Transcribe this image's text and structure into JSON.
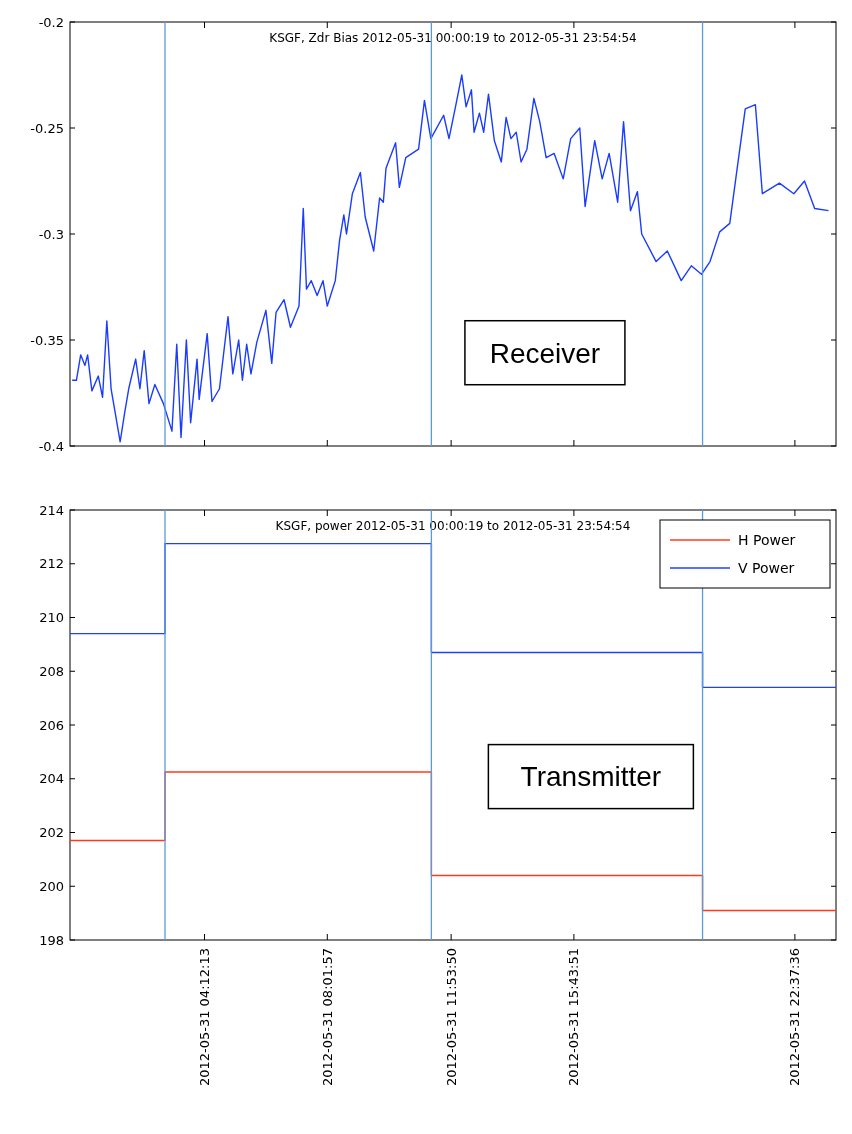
{
  "chart_data": [
    {
      "type": "line",
      "title": "KSGF, Zdr Bias 2012-05-31 00:00:19 to 2012-05-31 23:54:54",
      "x": [
        "2012-05-31T00:04",
        "2012-05-31T00:12",
        "2012-05-31T00:20",
        "2012-05-31T00:28",
        "2012-05-31T00:33",
        "2012-05-31T00:41",
        "2012-05-31T00:53",
        "2012-05-31T01:01",
        "2012-05-31T01:09",
        "2012-05-31T01:17",
        "2012-05-31T01:34",
        "2012-05-31T01:42",
        "2012-05-31T01:50",
        "2012-05-31T02:03",
        "2012-05-31T02:11",
        "2012-05-31T02:19",
        "2012-05-31T02:28",
        "2012-05-31T02:39",
        "2012-05-31T02:55",
        "2012-05-31T03:11",
        "2012-05-31T03:20",
        "2012-05-31T03:28",
        "2012-05-31T03:38",
        "2012-05-31T03:46",
        "2012-05-31T03:58",
        "2012-05-31T04:02",
        "2012-05-31T04:17",
        "2012-05-31T04:26",
        "2012-05-31T04:40",
        "2012-05-31T04:56",
        "2012-05-31T05:05",
        "2012-05-31T05:16",
        "2012-05-31T05:23",
        "2012-05-31T05:31",
        "2012-05-31T05:39",
        "2012-05-31T05:50",
        "2012-05-31T06:07",
        "2012-05-31T06:18",
        "2012-05-31T06:26",
        "2012-05-31T06:41",
        "2012-05-31T06:53",
        "2012-05-31T07:09",
        "2012-05-31T07:17",
        "2012-05-31T07:23",
        "2012-05-31T07:32",
        "2012-05-31T07:43",
        "2012-05-31T07:54",
        "2012-05-31T08:02",
        "2012-05-31T08:17",
        "2012-05-31T08:25",
        "2012-05-31T08:33",
        "2012-05-31T08:38",
        "2012-05-31T08:49",
        "2012-05-31T09:04",
        "2012-05-31T09:13",
        "2012-05-31T09:29",
        "2012-05-31T09:40",
        "2012-05-31T09:47",
        "2012-05-31T09:52",
        "2012-05-31T10:10",
        "2012-05-31T10:17",
        "2012-05-31T10:29",
        "2012-05-31T10:53",
        "2012-05-31T11:04",
        "2012-05-31T11:16",
        "2012-05-31T11:40",
        "2012-05-31T11:50",
        "2012-05-31T12:03",
        "2012-05-31T12:14",
        "2012-05-31T12:22",
        "2012-05-31T12:32",
        "2012-05-31T12:37",
        "2012-05-31T12:47",
        "2012-05-31T12:55",
        "2012-05-31T13:04",
        "2012-05-31T13:15",
        "2012-05-31T13:28",
        "2012-05-31T13:37",
        "2012-05-31T13:46",
        "2012-05-31T13:56",
        "2012-05-31T14:05",
        "2012-05-31T14:16",
        "2012-05-31T14:29",
        "2012-05-31T14:40",
        "2012-05-31T14:52",
        "2012-05-31T15:07",
        "2012-05-31T15:24",
        "2012-05-31T15:38",
        "2012-05-31T15:55",
        "2012-05-31T16:05",
        "2012-05-31T16:23",
        "2012-05-31T16:37",
        "2012-05-31T16:50",
        "2012-05-31T17:06",
        "2012-05-31T17:17",
        "2012-05-31T17:30",
        "2012-05-31T17:43",
        "2012-05-31T17:51",
        "2012-05-31T18:18",
        "2012-05-31T18:39",
        "2012-05-31T19:05",
        "2012-05-31T19:24",
        "2012-05-31T19:43",
        "2012-05-31T19:59",
        "2012-05-31T20:17",
        "2012-05-31T20:36",
        "2012-05-31T20:52",
        "2012-05-31T21:05",
        "2012-05-31T21:24",
        "2012-05-31T21:37",
        "2012-05-31T22:09",
        "2012-05-31T22:36",
        "2012-05-31T22:56",
        "2012-05-31T23:15",
        "2012-05-31T23:41"
      ],
      "series": [
        {
          "color": "#1a3cff",
          "values": [
            -0.369,
            -0.369,
            -0.357,
            -0.362,
            -0.357,
            -0.374,
            -0.367,
            -0.377,
            -0.341,
            -0.373,
            -0.398,
            -0.385,
            -0.373,
            -0.359,
            -0.373,
            -0.355,
            -0.38,
            -0.371,
            -0.38,
            -0.393,
            -0.352,
            -0.396,
            -0.35,
            -0.389,
            -0.359,
            -0.378,
            -0.347,
            -0.379,
            -0.373,
            -0.339,
            -0.366,
            -0.35,
            -0.369,
            -0.352,
            -0.366,
            -0.351,
            -0.336,
            -0.361,
            -0.337,
            -0.331,
            -0.344,
            -0.334,
            -0.288,
            -0.326,
            -0.322,
            -0.329,
            -0.322,
            -0.334,
            -0.322,
            -0.303,
            -0.291,
            -0.3,
            -0.281,
            -0.271,
            -0.292,
            -0.308,
            -0.283,
            -0.285,
            -0.269,
            -0.257,
            -0.278,
            -0.264,
            -0.26,
            -0.237,
            -0.255,
            -0.244,
            -0.255,
            -0.239,
            -0.225,
            -0.24,
            -0.232,
            -0.252,
            -0.243,
            -0.252,
            -0.234,
            -0.256,
            -0.266,
            -0.245,
            -0.255,
            -0.252,
            -0.266,
            -0.26,
            -0.236,
            -0.247,
            -0.264,
            -0.262,
            -0.274,
            -0.255,
            -0.25,
            -0.287,
            -0.256,
            -0.274,
            -0.262,
            -0.285,
            -0.247,
            -0.289,
            -0.28,
            -0.3,
            -0.313,
            -0.308,
            -0.322,
            -0.315,
            -0.319,
            -0.313,
            -0.299,
            -0.295,
            -0.265,
            -0.241,
            -0.239,
            -0.281,
            -0.276,
            -0.281,
            -0.275,
            -0.288,
            -0.289
          ]
        }
      ],
      "xlim": [
        "2012-05-31T00:00",
        "2012-05-31T23:55"
      ],
      "xticks": [
        {
          "value": "2012-05-31T04:12",
          "label": null
        },
        {
          "value": "2012-05-31T08:02",
          "label": null
        },
        {
          "value": "2012-05-31T11:54",
          "label": null
        },
        {
          "value": "2012-05-31T15:44",
          "label": null
        },
        {
          "value": "2012-05-31T22:38",
          "label": null
        }
      ],
      "ylim": [
        -0.4,
        -0.2
      ],
      "yticks": [
        -0.4,
        -0.35,
        -0.3,
        -0.25,
        -0.2
      ],
      "tick_labels": "y",
      "ref_lines": [
        {
          "axis": "x",
          "value": "2012-05-31T02:58",
          "color": "#5b9bd5"
        },
        {
          "axis": "x",
          "value": "2012-05-31T11:17",
          "color": "#5b9bd5"
        },
        {
          "axis": "x",
          "value": "2012-05-31T19:45",
          "color": "#5b9bd5"
        }
      ],
      "annotations": [
        "Receiver"
      ]
    },
    {
      "type": "step",
      "title": "KSGF, power 2012-05-31 00:00:19 to 2012-05-31 23:54:54",
      "x": [
        "2012-05-31T00:00",
        "2012-05-31T02:58",
        "2012-05-31T11:17",
        "2012-05-31T19:45",
        "2012-05-31T23:55"
      ],
      "series": [
        {
          "name": "H Power",
          "color": "#ff3a1a",
          "values": [
            201.7,
            204.25,
            200.4,
            199.1,
            199.1
          ]
        },
        {
          "name": "V Power",
          "color": "#2040ff",
          "values": [
            209.4,
            212.75,
            208.7,
            207.4,
            207.4
          ]
        }
      ],
      "xlim": [
        "2012-05-31T00:00",
        "2012-05-31T23:55"
      ],
      "xticks": [
        {
          "value": "2012-05-31T04:12",
          "label": "2012-05-31 04:12:13"
        },
        {
          "value": "2012-05-31T08:02",
          "label": "2012-05-31 08:01:57"
        },
        {
          "value": "2012-05-31T11:54",
          "label": "2012-05-31 11:53:50"
        },
        {
          "value": "2012-05-31T15:44",
          "label": "2012-05-31 15:43:51"
        },
        {
          "value": "2012-05-31T22:38",
          "label": "2012-05-31 22:37:36"
        }
      ],
      "ylim": [
        198,
        214
      ],
      "yticks": [
        198,
        200,
        202,
        204,
        206,
        208,
        210,
        212,
        214
      ],
      "legend": "top right",
      "ref_lines": [
        {
          "axis": "x",
          "value": "2012-05-31T02:58",
          "color": "#5b9bd5"
        },
        {
          "axis": "x",
          "value": "2012-05-31T11:17",
          "color": "#5b9bd5"
        },
        {
          "axis": "x",
          "value": "2012-05-31T19:45",
          "color": "#5b9bd5"
        }
      ],
      "annotations": [
        "Transmitter"
      ]
    }
  ]
}
